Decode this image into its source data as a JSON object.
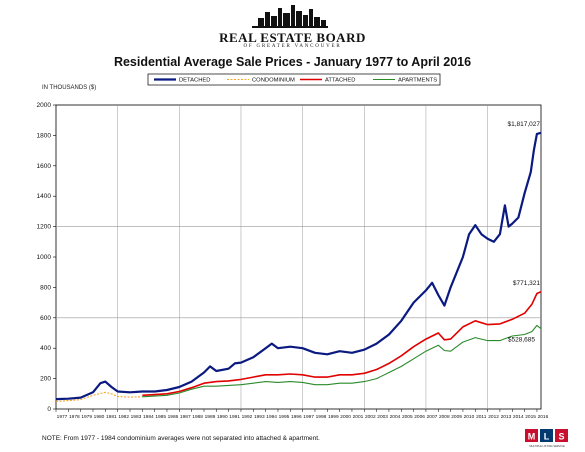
{
  "header": {
    "brand": "REAL ESTATE BOARD",
    "sub": "OF GREATER VANCOUVER"
  },
  "chart_data": {
    "type": "line",
    "title": "Residential Average Sale Prices  -  January 1977 to April 2016",
    "ylabel": "IN THOUSANDS ($)",
    "xlabel": "",
    "ylim": [
      0,
      2000
    ],
    "yticks": [
      0,
      200,
      400,
      600,
      800,
      1000,
      1200,
      1400,
      1600,
      1800,
      2000
    ],
    "xlim": [
      1977,
      2016.33
    ],
    "xticks": [
      "1977",
      "1978",
      "1979",
      "1980",
      "1981",
      "1982",
      "1983",
      "1984",
      "1985",
      "1986",
      "1987",
      "1988",
      "1989",
      "1990",
      "1991",
      "1992",
      "1993",
      "1994",
      "1995",
      "1996",
      "1997",
      "1998",
      "1999",
      "2000",
      "2001",
      "2002",
      "2003",
      "2004",
      "2005",
      "2006",
      "2007",
      "2008",
      "2009",
      "2010",
      "2011",
      "2012",
      "2013",
      "2014",
      "2015",
      "2016"
    ],
    "grid": "horizontal at 600 and 1200, vertical every 5 years",
    "legend_position": "top-center",
    "series": [
      {
        "name": "DETACHED",
        "color": "#0a1a80",
        "style": "solid",
        "width": 2.2,
        "points": [
          [
            1977,
            65
          ],
          [
            1978,
            68
          ],
          [
            1979,
            75
          ],
          [
            1980,
            110
          ],
          [
            1980.6,
            170
          ],
          [
            1981,
            180
          ],
          [
            1981.5,
            145
          ],
          [
            1982,
            115
          ],
          [
            1983,
            110
          ],
          [
            1984,
            115
          ],
          [
            1985,
            115
          ],
          [
            1986,
            125
          ],
          [
            1987,
            145
          ],
          [
            1988,
            180
          ],
          [
            1989,
            240
          ],
          [
            1989.5,
            280
          ],
          [
            1990,
            250
          ],
          [
            1991,
            265
          ],
          [
            1991.5,
            300
          ],
          [
            1992,
            305
          ],
          [
            1993,
            340
          ],
          [
            1994,
            400
          ],
          [
            1994.5,
            430
          ],
          [
            1995,
            400
          ],
          [
            1996,
            410
          ],
          [
            1997,
            400
          ],
          [
            1998,
            370
          ],
          [
            1999,
            360
          ],
          [
            2000,
            380
          ],
          [
            2001,
            370
          ],
          [
            2002,
            390
          ],
          [
            2003,
            430
          ],
          [
            2004,
            490
          ],
          [
            2005,
            580
          ],
          [
            2006,
            700
          ],
          [
            2007,
            780
          ],
          [
            2007.5,
            830
          ],
          [
            2008,
            750
          ],
          [
            2008.5,
            680
          ],
          [
            2009,
            800
          ],
          [
            2010,
            1000
          ],
          [
            2010.5,
            1150
          ],
          [
            2011,
            1210
          ],
          [
            2011.5,
            1150
          ],
          [
            2012,
            1120
          ],
          [
            2012.5,
            1100
          ],
          [
            2013,
            1150
          ],
          [
            2013.4,
            1340
          ],
          [
            2013.7,
            1200
          ],
          [
            2014,
            1220
          ],
          [
            2014.5,
            1260
          ],
          [
            2015,
            1420
          ],
          [
            2015.5,
            1560
          ],
          [
            2015.75,
            1700
          ],
          [
            2016,
            1810
          ],
          [
            2016.33,
            1817
          ]
        ]
      },
      {
        "name": "CONDOMINIUM",
        "color": "#f5a623",
        "style": "dashed",
        "width": 1.1,
        "points": [
          [
            1977,
            50
          ],
          [
            1978,
            55
          ],
          [
            1979,
            62
          ],
          [
            1980,
            90
          ],
          [
            1981,
            110
          ],
          [
            1981.5,
            100
          ],
          [
            1982,
            82
          ],
          [
            1983,
            78
          ],
          [
            1984,
            80
          ]
        ]
      },
      {
        "name": "ATTACHED",
        "color": "#e00000",
        "style": "solid",
        "width": 1.6,
        "points": [
          [
            1984,
            90
          ],
          [
            1985,
            95
          ],
          [
            1986,
            100
          ],
          [
            1987,
            115
          ],
          [
            1988,
            140
          ],
          [
            1989,
            170
          ],
          [
            1990,
            180
          ],
          [
            1991,
            185
          ],
          [
            1992,
            195
          ],
          [
            1993,
            210
          ],
          [
            1994,
            225
          ],
          [
            1995,
            225
          ],
          [
            1996,
            230
          ],
          [
            1997,
            225
          ],
          [
            1998,
            210
          ],
          [
            1999,
            210
          ],
          [
            2000,
            225
          ],
          [
            2001,
            225
          ],
          [
            2002,
            235
          ],
          [
            2003,
            260
          ],
          [
            2004,
            300
          ],
          [
            2005,
            350
          ],
          [
            2006,
            410
          ],
          [
            2007,
            460
          ],
          [
            2008,
            500
          ],
          [
            2008.5,
            455
          ],
          [
            2009,
            460
          ],
          [
            2010,
            540
          ],
          [
            2011,
            580
          ],
          [
            2012,
            555
          ],
          [
            2013,
            560
          ],
          [
            2014,
            590
          ],
          [
            2015,
            630
          ],
          [
            2015.6,
            690
          ],
          [
            2016,
            760
          ],
          [
            2016.33,
            771
          ]
        ]
      },
      {
        "name": "APARTMENTS",
        "color": "#2a8a2a",
        "style": "solid",
        "width": 1.1,
        "points": [
          [
            1984,
            80
          ],
          [
            1985,
            85
          ],
          [
            1986,
            90
          ],
          [
            1987,
            105
          ],
          [
            1988,
            130
          ],
          [
            1989,
            150
          ],
          [
            1990,
            150
          ],
          [
            1991,
            155
          ],
          [
            1992,
            160
          ],
          [
            1993,
            170
          ],
          [
            1994,
            180
          ],
          [
            1995,
            175
          ],
          [
            1996,
            180
          ],
          [
            1997,
            175
          ],
          [
            1998,
            160
          ],
          [
            1999,
            160
          ],
          [
            2000,
            170
          ],
          [
            2001,
            170
          ],
          [
            2002,
            180
          ],
          [
            2003,
            200
          ],
          [
            2004,
            240
          ],
          [
            2005,
            280
          ],
          [
            2006,
            330
          ],
          [
            2007,
            380
          ],
          [
            2008,
            420
          ],
          [
            2008.5,
            385
          ],
          [
            2009,
            380
          ],
          [
            2010,
            440
          ],
          [
            2011,
            470
          ],
          [
            2012,
            450
          ],
          [
            2013,
            450
          ],
          [
            2014,
            480
          ],
          [
            2015,
            490
          ],
          [
            2015.6,
            510
          ],
          [
            2016,
            550
          ],
          [
            2016.33,
            528
          ]
        ]
      }
    ],
    "annotations": [
      {
        "text": "$1,817,027",
        "x": 2016.33,
        "y": 1817,
        "series": "DETACHED"
      },
      {
        "text": "$771,321",
        "x": 2016.33,
        "y": 771,
        "series": "ATTACHED"
      },
      {
        "text": "$528,685",
        "x": 2016.33,
        "y": 528,
        "series": "APARTMENTS"
      }
    ]
  },
  "note": "NOTE:  From 1977 - 1984 condominium averages were not separated into attached & apartment.",
  "logo_bottom": {
    "letters": [
      "M",
      "L",
      "S"
    ],
    "caption": "MULTIPLE LISTING SERVICE"
  }
}
